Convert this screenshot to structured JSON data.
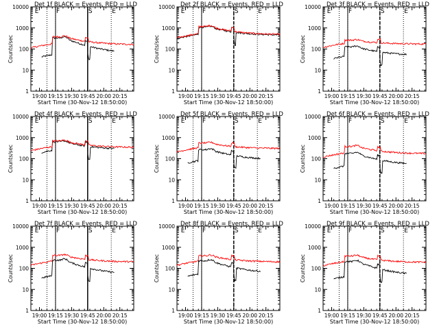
{
  "page": {
    "xlabel": "Start Time (30-Nov-12 18:50:00)",
    "ylabel": "Counts/sec",
    "y_ticks": [
      "1",
      "10",
      "100",
      "1000",
      "10000"
    ],
    "x_ticks": [
      "19:00",
      "19:15",
      "19:30",
      "19:45",
      "20:00",
      "20:15"
    ],
    "colors": {
      "events": "#000000",
      "lld": "#ff0000",
      "axes": "#000000"
    },
    "y_scale": "log",
    "ylim": [
      1,
      10000
    ],
    "xlim": [
      "18:52",
      "20:28"
    ]
  },
  "chart_data": [
    {
      "type": "line",
      "title": "Det 1f BLACK = Events, RED = LLD",
      "markers": [
        "E",
        "F",
        "S",
        "E"
      ],
      "series": [
        {
          "name": "Events",
          "peak": 380,
          "base": 60,
          "bump": 90
        },
        {
          "name": "LLD",
          "peak": 420,
          "base": 160,
          "bump": 220
        }
      ],
      "event_data_span": [
        "19:02",
        "20:10"
      ],
      "lld_span": [
        "18:52",
        "20:28"
      ]
    },
    {
      "type": "line",
      "title": "Det 2f BLACK = Events, RED = LLD",
      "markers": [
        "E",
        "F",
        "S",
        "E"
      ],
      "series": [
        {
          "name": "Events",
          "peak": 1200,
          "base": 450,
          "bump": 800
        },
        {
          "name": "LLD",
          "peak": 1300,
          "base": 480,
          "bump": 900
        }
      ],
      "event_data_span": [
        "18:52",
        "20:28"
      ],
      "lld_span": [
        "18:52",
        "20:28"
      ]
    },
    {
      "type": "line",
      "title": "Det 3f BLACK = Events, RED = LLD",
      "markers": [
        "E",
        "F",
        "S",
        "E"
      ],
      "series": [
        {
          "name": "Events",
          "peak": 140,
          "base": 50,
          "bump": 80
        },
        {
          "name": "LLD",
          "peak": 280,
          "base": 170,
          "bump": 200
        }
      ],
      "event_data_span": [
        "19:02",
        "20:10"
      ],
      "lld_span": [
        "18:52",
        "20:28"
      ]
    },
    {
      "type": "line",
      "title": "Det 4f BLACK = Events, RED = LLD",
      "markers": [
        "E",
        "F",
        "S",
        "E"
      ],
      "series": [
        {
          "name": "Events",
          "peak": 700,
          "base": 280,
          "bump": 400
        },
        {
          "name": "LLD",
          "peak": 760,
          "base": 340,
          "bump": 450
        }
      ],
      "event_data_span": [
        "19:02",
        "20:10"
      ],
      "lld_span": [
        "18:52",
        "20:28"
      ]
    },
    {
      "type": "line",
      "title": "Det 5f BLACK = Events, RED = LLD",
      "markers": [
        "E",
        "F",
        "S",
        "E"
      ],
      "series": [
        {
          "name": "Events",
          "peak": 300,
          "base": 90,
          "bump": 130
        },
        {
          "name": "LLD",
          "peak": 600,
          "base": 300,
          "bump": 350
        }
      ],
      "event_data_span": [
        "19:02",
        "20:10"
      ],
      "lld_span": [
        "18:52",
        "20:28"
      ]
    },
    {
      "type": "line",
      "title": "Det 6f BLACK = Events, RED = LLD",
      "markers": [
        "E",
        "F",
        "S",
        "E"
      ],
      "series": [
        {
          "name": "Events",
          "peak": 200,
          "base": 50,
          "bump": 80
        },
        {
          "name": "LLD",
          "peak": 420,
          "base": 170,
          "bump": 200
        }
      ],
      "event_data_span": [
        "19:02",
        "20:10"
      ],
      "lld_span": [
        "18:52",
        "20:28"
      ]
    },
    {
      "type": "line",
      "title": "Det 7f BLACK = Events, RED = LLD",
      "markers": [
        "E",
        "F",
        "S",
        "E"
      ],
      "series": [
        {
          "name": "Events",
          "peak": 280,
          "base": 50,
          "bump": 80
        },
        {
          "name": "LLD",
          "peak": 450,
          "base": 200,
          "bump": 230
        }
      ],
      "event_data_span": [
        "19:02",
        "20:10"
      ],
      "lld_span": [
        "18:52",
        "20:28"
      ]
    },
    {
      "type": "line",
      "title": "Det 8f BLACK = Events, RED = LLD",
      "markers": [
        "E",
        "F",
        "S",
        "E"
      ],
      "series": [
        {
          "name": "Events",
          "peak": 260,
          "base": 60,
          "bump": 90
        },
        {
          "name": "LLD",
          "peak": 430,
          "base": 200,
          "bump": 230
        }
      ],
      "event_data_span": [
        "19:02",
        "20:10"
      ],
      "lld_span": [
        "18:52",
        "20:28"
      ]
    },
    {
      "type": "line",
      "title": "Det 9f BLACK = Events, RED = LLD",
      "markers": [
        "E",
        "F",
        "S",
        "E"
      ],
      "series": [
        {
          "name": "Events",
          "peak": 240,
          "base": 45,
          "bump": 70
        },
        {
          "name": "LLD",
          "peak": 420,
          "base": 190,
          "bump": 220
        }
      ],
      "event_data_span": [
        "19:02",
        "20:10"
      ],
      "lld_span": [
        "18:52",
        "20:28"
      ]
    }
  ]
}
